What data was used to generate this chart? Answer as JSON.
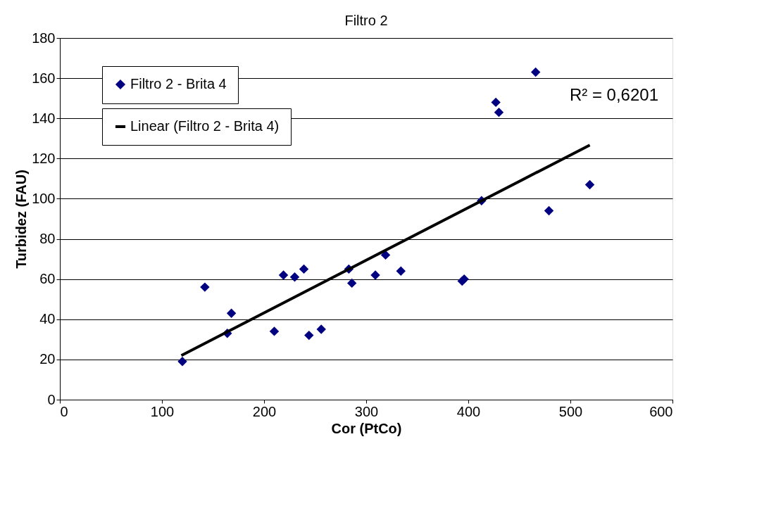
{
  "chart_data": {
    "type": "scatter",
    "title": "Filtro 2",
    "xlabel": "Cor (PtCo)",
    "ylabel": "Turbidez (FAU)",
    "xlim": [
      0,
      600
    ],
    "xticks": [
      0,
      100,
      200,
      300,
      400,
      500,
      600
    ],
    "ylim": [
      0,
      180
    ],
    "yticks": [
      0,
      20,
      40,
      60,
      80,
      100,
      120,
      140,
      160,
      180
    ],
    "grid": "y",
    "legend": "top left",
    "marker": "diamond",
    "annotations": [
      "R² = 0,6201"
    ],
    "series": [
      {
        "name": "Filtro 2 - Brita 4",
        "color": "#000080",
        "x": [
          120,
          142,
          164,
          168,
          210,
          219,
          230,
          239,
          244,
          256,
          283,
          286,
          309,
          319,
          334,
          394,
          396,
          413,
          427,
          430,
          466,
          479,
          519
        ],
        "values": [
          19,
          56,
          33,
          43,
          34,
          62,
          61,
          65,
          32,
          35,
          65,
          58,
          62,
          72,
          64,
          59,
          60,
          99,
          148,
          143,
          163,
          94,
          107
        ]
      },
      {
        "name": "Linear (Filtro 2 - Brita 4)",
        "type": "line",
        "color": "#000000",
        "line_style": "solid",
        "marker": "none",
        "x": [
          119,
          519
        ],
        "values": [
          22,
          126.7
        ]
      }
    ]
  }
}
